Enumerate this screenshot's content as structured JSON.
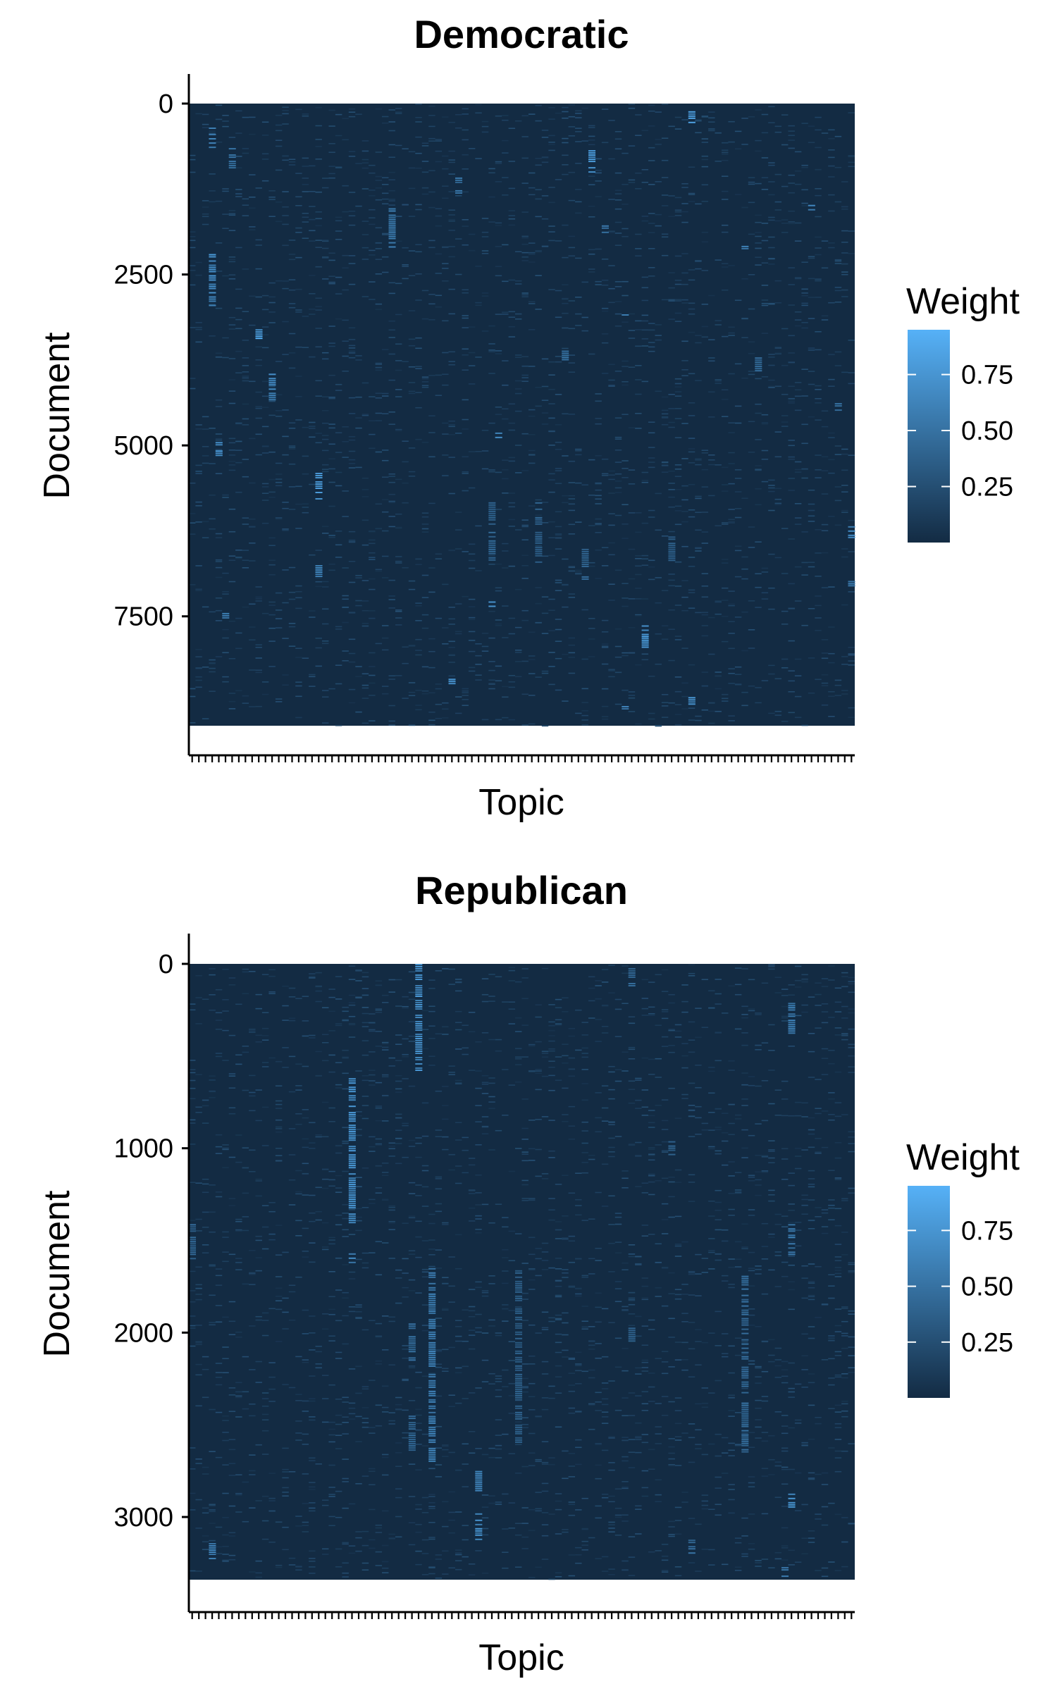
{
  "chart_data": [
    {
      "type": "heatmap",
      "title": "Democratic",
      "xlabel": "Topic",
      "ylabel": "Document",
      "ylim": [
        0,
        9100
      ],
      "num_topics": 100,
      "yticks": [
        0,
        2500,
        5000,
        7500
      ],
      "colorbar": {
        "title": "Weight",
        "ticks": [
          0.25,
          0.5,
          0.75
        ],
        "tick_labels": [
          "0.25",
          "0.50",
          "0.75"
        ],
        "range": [
          0.0,
          0.95
        ],
        "low_color": "#132B43",
        "high_color": "#56B1F7"
      },
      "highlights": [
        {
          "topic": 4,
          "doc_start": 2200,
          "doc_end": 2950,
          "weight": 0.75
        },
        {
          "topic": 4,
          "doc_start": 350,
          "doc_end": 650,
          "weight": 0.6
        },
        {
          "topic": 7,
          "doc_start": 650,
          "doc_end": 950,
          "weight": 0.55
        },
        {
          "topic": 5,
          "doc_start": 4950,
          "doc_end": 5150,
          "weight": 0.8
        },
        {
          "topic": 6,
          "doc_start": 7450,
          "doc_end": 7550,
          "weight": 0.7
        },
        {
          "topic": 11,
          "doc_start": 3300,
          "doc_end": 3450,
          "weight": 0.9
        },
        {
          "topic": 13,
          "doc_start": 3950,
          "doc_end": 4350,
          "weight": 0.7
        },
        {
          "topic": 20,
          "doc_start": 5400,
          "doc_end": 5800,
          "weight": 0.8
        },
        {
          "topic": 20,
          "doc_start": 6750,
          "doc_end": 6950,
          "weight": 0.65
        },
        {
          "topic": 31,
          "doc_start": 1500,
          "doc_end": 2100,
          "weight": 0.6
        },
        {
          "topic": 41,
          "doc_start": 1050,
          "doc_end": 1300,
          "weight": 0.55
        },
        {
          "topic": 40,
          "doc_start": 8350,
          "doc_end": 8500,
          "weight": 0.85
        },
        {
          "topic": 47,
          "doc_start": 4750,
          "doc_end": 4900,
          "weight": 0.7
        },
        {
          "topic": 46,
          "doc_start": 5800,
          "doc_end": 6700,
          "weight": 0.45
        },
        {
          "topic": 46,
          "doc_start": 7250,
          "doc_end": 7350,
          "weight": 0.75
        },
        {
          "topic": 53,
          "doc_start": 5800,
          "doc_end": 6700,
          "weight": 0.4
        },
        {
          "topic": 57,
          "doc_start": 3550,
          "doc_end": 3800,
          "weight": 0.6
        },
        {
          "topic": 60,
          "doc_start": 6450,
          "doc_end": 6950,
          "weight": 0.45
        },
        {
          "topic": 61,
          "doc_start": 650,
          "doc_end": 1000,
          "weight": 0.85
        },
        {
          "topic": 63,
          "doc_start": 1750,
          "doc_end": 2050,
          "weight": 0.55
        },
        {
          "topic": 66,
          "doc_start": 3050,
          "doc_end": 3100,
          "weight": 0.75
        },
        {
          "topic": 69,
          "doc_start": 7600,
          "doc_end": 7950,
          "weight": 0.85
        },
        {
          "topic": 66,
          "doc_start": 8750,
          "doc_end": 8850,
          "weight": 0.6
        },
        {
          "topic": 76,
          "doc_start": 80,
          "doc_end": 280,
          "weight": 0.85
        },
        {
          "topic": 76,
          "doc_start": 8650,
          "doc_end": 8800,
          "weight": 0.75
        },
        {
          "topic": 73,
          "doc_start": 6300,
          "doc_end": 6700,
          "weight": 0.4
        },
        {
          "topic": 84,
          "doc_start": 2050,
          "doc_end": 2120,
          "weight": 0.7
        },
        {
          "topic": 86,
          "doc_start": 3650,
          "doc_end": 3900,
          "weight": 0.5
        },
        {
          "topic": 94,
          "doc_start": 1450,
          "doc_end": 1550,
          "weight": 0.65
        },
        {
          "topic": 100,
          "doc_start": 6150,
          "doc_end": 6350,
          "weight": 0.75
        },
        {
          "topic": 100,
          "doc_start": 6950,
          "doc_end": 7050,
          "weight": 0.6
        },
        {
          "topic": 98,
          "doc_start": 4350,
          "doc_end": 4500,
          "weight": 0.55
        }
      ]
    },
    {
      "type": "heatmap",
      "title": "Republican",
      "xlabel": "Topic",
      "ylabel": "Document",
      "ylim": [
        0,
        3340
      ],
      "num_topics": 100,
      "yticks": [
        0,
        1000,
        2000,
        3000
      ],
      "colorbar": {
        "title": "Weight",
        "ticks": [
          0.25,
          0.5,
          0.75
        ],
        "tick_labels": [
          "0.25",
          "0.50",
          "0.75"
        ],
        "range": [
          0.0,
          0.95
        ],
        "low_color": "#132B43",
        "high_color": "#56B1F7"
      },
      "highlights": [
        {
          "topic": 35,
          "doc_start": 0,
          "doc_end": 580,
          "weight": 0.75
        },
        {
          "topic": 25,
          "doc_start": 620,
          "doc_end": 1400,
          "weight": 0.8
        },
        {
          "topic": 25,
          "doc_start": 1570,
          "doc_end": 1620,
          "weight": 0.7
        },
        {
          "topic": 37,
          "doc_start": 1650,
          "doc_end": 2700,
          "weight": 0.65
        },
        {
          "topic": 34,
          "doc_start": 1950,
          "doc_end": 2150,
          "weight": 0.5
        },
        {
          "topic": 34,
          "doc_start": 2450,
          "doc_end": 2650,
          "weight": 0.45
        },
        {
          "topic": 44,
          "doc_start": 2750,
          "doc_end": 2900,
          "weight": 0.7
        },
        {
          "topic": 44,
          "doc_start": 2980,
          "doc_end": 3120,
          "weight": 0.75
        },
        {
          "topic": 50,
          "doc_start": 1650,
          "doc_end": 2600,
          "weight": 0.4
        },
        {
          "topic": 67,
          "doc_start": 0,
          "doc_end": 120,
          "weight": 0.45
        },
        {
          "topic": 67,
          "doc_start": 1950,
          "doc_end": 2050,
          "weight": 0.45
        },
        {
          "topic": 84,
          "doc_start": 1680,
          "doc_end": 2650,
          "weight": 0.5
        },
        {
          "topic": 91,
          "doc_start": 200,
          "doc_end": 380,
          "weight": 0.65
        },
        {
          "topic": 91,
          "doc_start": 1400,
          "doc_end": 1580,
          "weight": 0.6
        },
        {
          "topic": 91,
          "doc_start": 2850,
          "doc_end": 2950,
          "weight": 0.85
        },
        {
          "topic": 76,
          "doc_start": 3100,
          "doc_end": 3200,
          "weight": 0.5
        },
        {
          "topic": 1,
          "doc_start": 1400,
          "doc_end": 1600,
          "weight": 0.45
        },
        {
          "topic": 4,
          "doc_start": 3130,
          "doc_end": 3230,
          "weight": 0.65
        },
        {
          "topic": 90,
          "doc_start": 3260,
          "doc_end": 3320,
          "weight": 0.6
        },
        {
          "topic": 73,
          "doc_start": 950,
          "doc_end": 1050,
          "weight": 0.4
        },
        {
          "topic": 56,
          "doc_start": 580,
          "doc_end": 620,
          "weight": 0.5
        }
      ]
    }
  ]
}
